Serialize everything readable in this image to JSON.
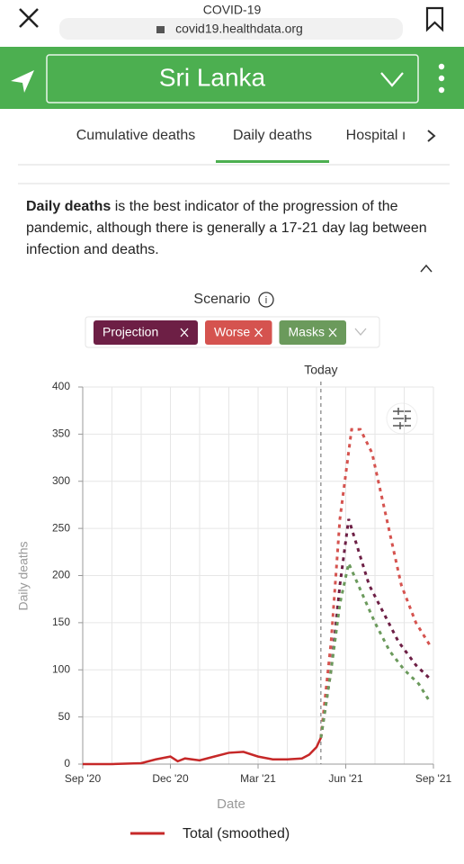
{
  "browser": {
    "title": "COVID-19",
    "url": "covid19.healthdata.org"
  },
  "header": {
    "location": "Sri Lanka"
  },
  "tabs": [
    "Cumulative deaths",
    "Daily deaths",
    "Hospital ı"
  ],
  "description": {
    "bold": "Daily deaths",
    "rest": " is the best indicator of the progression of the pandemic, although there is generally a 17-21 day lag between infection and deaths."
  },
  "scenario_label": "Scenario",
  "chart_data": {
    "type": "line",
    "y_label": "Daily deaths",
    "x_label": "Date",
    "annotation": {
      "text": "Today",
      "x": 8.15
    },
    "xlim": [
      0,
      12
    ],
    "ylim": [
      0,
      400
    ],
    "xticks": [
      {
        "value": 0,
        "label": "Sep '20"
      },
      {
        "value": 3,
        "label": "Dec '20"
      },
      {
        "value": 6,
        "label": "Mar '21"
      },
      {
        "value": 9,
        "label": "Jun '21"
      },
      {
        "value": 12,
        "label": "Sep '21"
      }
    ],
    "x_gridlines": [
      0,
      1,
      2,
      3,
      4,
      5,
      6,
      7,
      8,
      9,
      10,
      11,
      12
    ],
    "yticks": [
      0,
      50,
      100,
      150,
      200,
      250,
      300,
      350,
      400
    ],
    "grid": true,
    "series": [
      {
        "name": "Total (smoothed)",
        "color": "#c62828",
        "dash": false,
        "legend": true,
        "x": [
          0,
          1,
          2,
          2.5,
          3,
          3.25,
          3.5,
          4,
          4.5,
          5,
          5.5,
          6,
          6.5,
          7,
          7.5,
          7.75,
          8,
          8.15
        ],
        "values": [
          0,
          0,
          1,
          5,
          8,
          3,
          6,
          4,
          8,
          12,
          13,
          8,
          5,
          5,
          6,
          10,
          18,
          28
        ]
      },
      {
        "name": "Projection",
        "color": "#6d1f45",
        "dash": true,
        "legend": false,
        "x": [
          8.15,
          8.5,
          8.8,
          9.1,
          9.4,
          9.8,
          10.3,
          10.8,
          11.4,
          11.9
        ],
        "values": [
          28,
          100,
          190,
          260,
          230,
          190,
          160,
          130,
          105,
          90
        ]
      },
      {
        "name": "Worse",
        "color": "#d5534f",
        "dash": true,
        "legend": false,
        "x": [
          8.15,
          8.5,
          8.8,
          9.2,
          9.5,
          9.9,
          10.4,
          10.9,
          11.4,
          11.9
        ],
        "values": [
          28,
          130,
          260,
          355,
          355,
          330,
          260,
          190,
          150,
          125
        ]
      },
      {
        "name": "Masks",
        "color": "#6b9a5c",
        "dash": true,
        "legend": false,
        "x": [
          8.15,
          8.5,
          8.8,
          9.1,
          9.5,
          10,
          10.5,
          11,
          11.5,
          11.9
        ],
        "values": [
          28,
          100,
          170,
          213,
          185,
          150,
          120,
          100,
          85,
          65
        ]
      }
    ]
  }
}
